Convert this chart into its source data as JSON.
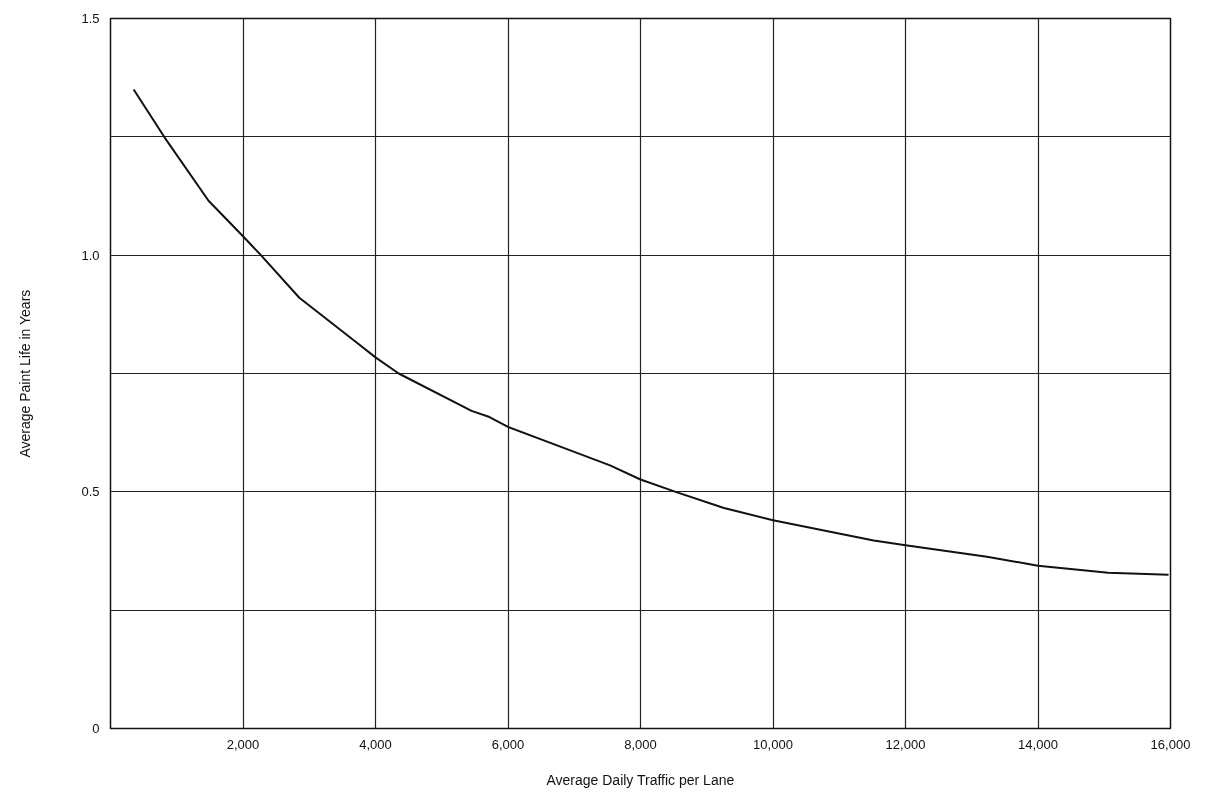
{
  "chart_data": {
    "type": "line",
    "xlabel": "Average Daily Traffic per Lane",
    "ylabel": "Average Paint Life in Years",
    "x": [
      350,
      810,
      1480,
      2000,
      2270,
      2850,
      3710,
      4000,
      4350,
      5450,
      5720,
      6000,
      6820,
      7540,
      8000,
      8530,
      9260,
      10000,
      11520,
      12000,
      13230,
      14000,
      15060,
      15970
    ],
    "series": [
      {
        "color": "#111111",
        "values": [
          1.35,
          1.25,
          1.115,
          1.04,
          1.0,
          0.91,
          0.816,
          0.784,
          0.75,
          0.671,
          0.658,
          0.637,
          0.594,
          0.556,
          0.526,
          0.5,
          0.466,
          0.44,
          0.397,
          0.387,
          0.363,
          0.344,
          0.329,
          0.325
        ]
      }
    ],
    "xlim": [
      0,
      16000
    ],
    "ylim": [
      0,
      1.5
    ],
    "xticks": [
      {
        "value": 2000,
        "label": "2,000"
      },
      {
        "value": 4000,
        "label": "4,000"
      },
      {
        "value": 6000,
        "label": "6,000"
      },
      {
        "value": 8000,
        "label": "8,000"
      },
      {
        "value": 10000,
        "label": "10,000"
      },
      {
        "value": 12000,
        "label": "12,000"
      },
      {
        "value": 14000,
        "label": "14,000"
      },
      {
        "value": 16000,
        "label": "16,000"
      }
    ],
    "yticks": [
      0,
      {
        "value": 0.25,
        "label": null
      },
      0.5,
      {
        "value": 0.75,
        "label": null
      },
      {
        "value": 1.0,
        "label": "1.0"
      },
      {
        "value": 1.25,
        "label": null
      },
      1.5
    ],
    "grid": true,
    "marker": "none",
    "line_style": "solid"
  }
}
